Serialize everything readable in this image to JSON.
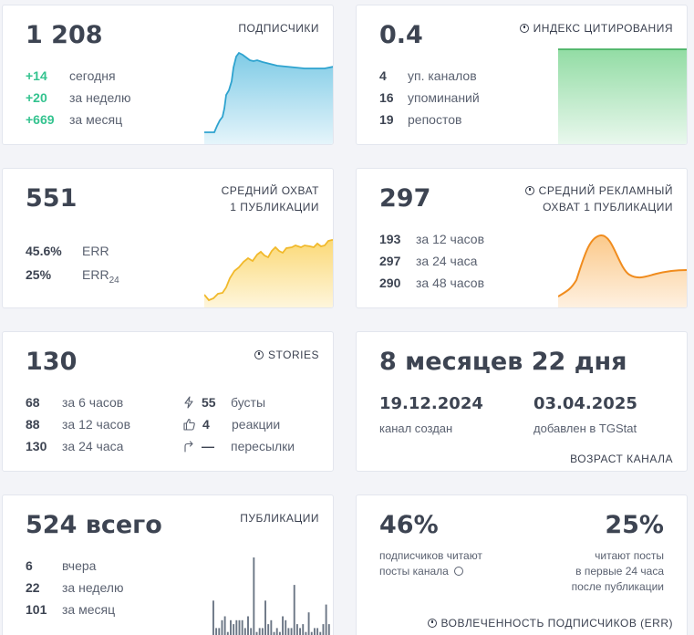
{
  "subscribers": {
    "value": "1 208",
    "label": "ПОДПИСЧИКИ",
    "rows": [
      {
        "value": "+14",
        "text": "сегодня"
      },
      {
        "value": "+20",
        "text": "за неделю"
      },
      {
        "value": "+669",
        "text": "за месяц"
      }
    ],
    "accent": "#41b0d6"
  },
  "citation": {
    "value": "0.4",
    "label": "ИНДЕКС ЦИТИРОВАНИЯ",
    "icon": "info-icon",
    "rows": [
      {
        "value": "4",
        "text": "уп. каналов"
      },
      {
        "value": "16",
        "text": "упоминаний"
      },
      {
        "value": "19",
        "text": "репостов"
      }
    ],
    "accent": "#34a853"
  },
  "reach": {
    "value": "551",
    "label_line1": "СРЕДНИЙ ОХВАТ",
    "label_line2": "1 ПУБЛИКАЦИИ",
    "rows": [
      {
        "value": "45.6%",
        "text": "ERR"
      },
      {
        "value": "25%",
        "text": "ERR",
        "subscript": "24"
      }
    ],
    "accent": "#f7c948"
  },
  "ad_reach": {
    "value": "297",
    "label_line1": "СРЕДНИЙ РЕКЛАМНЫЙ",
    "label_line2": "ОХВАТ 1 ПУБЛИКАЦИИ",
    "icon": "info-icon",
    "rows": [
      {
        "value": "193",
        "text": "за 12 часов"
      },
      {
        "value": "297",
        "text": "за 24 часа"
      },
      {
        "value": "290",
        "text": "за 48 часов"
      }
    ],
    "accent": "#f39c12"
  },
  "stories": {
    "value": "130",
    "label": "STORIES",
    "icon": "info-icon",
    "rows": [
      {
        "value": "68",
        "text": "за 6 часов"
      },
      {
        "value": "88",
        "text": "за 12 часов"
      },
      {
        "value": "130",
        "text": "за 24 часа"
      }
    ],
    "right_rows": [
      {
        "icon": "lightning-icon",
        "value": "55",
        "text": "бусты"
      },
      {
        "icon": "thumbs-up-icon",
        "value": "4",
        "text": "реакции"
      },
      {
        "icon": "share-arrow-icon",
        "value": "—",
        "text": "пересылки"
      }
    ]
  },
  "age": {
    "value": "8 месяцев 22 дня",
    "created_date": "19.12.2024",
    "created_label": "канал создан",
    "added_date": "03.04.2025",
    "added_label": "добавлен в TGStat",
    "label": "ВОЗРАСТ КАНАЛА"
  },
  "posts": {
    "value": "524 всего",
    "label": "ПУБЛИКАЦИИ",
    "rows": [
      {
        "value": "6",
        "text": "вчера"
      },
      {
        "value": "22",
        "text": "за неделю"
      },
      {
        "value": "101",
        "text": "за месяц"
      }
    ],
    "bars": [
      9,
      2,
      2,
      4,
      5,
      1,
      4,
      3,
      4,
      4,
      4,
      2,
      5,
      2,
      20,
      1,
      2,
      2,
      9,
      3,
      4,
      1,
      2,
      1,
      5,
      4,
      2,
      2,
      13,
      3,
      2,
      3,
      1,
      6,
      1,
      2,
      2,
      1,
      3,
      8,
      3
    ],
    "accent": "#6b7685"
  },
  "engagement": {
    "left_value": "46%",
    "left_line1": "подписчиков читают",
    "left_line2": "посты канала",
    "right_value": "25%",
    "right_line1": "читают посты",
    "right_line2": "в первые 24 часа",
    "right_line3": "после публикации",
    "label": "ВОВЛЕЧЕННОСТЬ ПОДПИСЧИКОВ (ERR)",
    "icon": "info-icon"
  }
}
